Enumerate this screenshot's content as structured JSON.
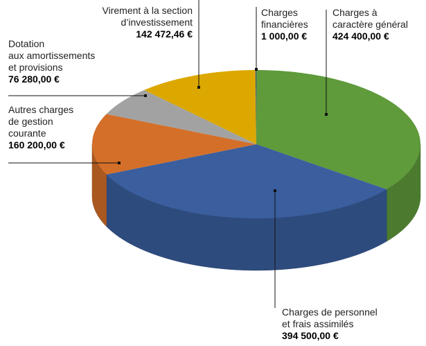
{
  "chart_data": {
    "type": "pie3d",
    "categories": [
      "Charges à\ncaractère général",
      "Charges de personnel\net frais assimilés",
      "Autres charges\nde gestion\ncourante",
      "Dotation\naux amortissements\net provisions",
      "Virement à la section\nd’investissement",
      "Charges\nfinancières"
    ],
    "values": [
      424400,
      394500,
      160200,
      76280,
      142472.46,
      1000
    ],
    "value_labels": [
      "424 400,00  €",
      "394 500,00 €",
      "160 200,00 €",
      "76 280,00 €",
      "142 472,46 €",
      "1 000,00 €"
    ],
    "colors": [
      "#5f9a3b",
      "#3a5e9e",
      "#d46f29",
      "#a2a2a2",
      "#dca800",
      "#2f4f8a"
    ]
  }
}
